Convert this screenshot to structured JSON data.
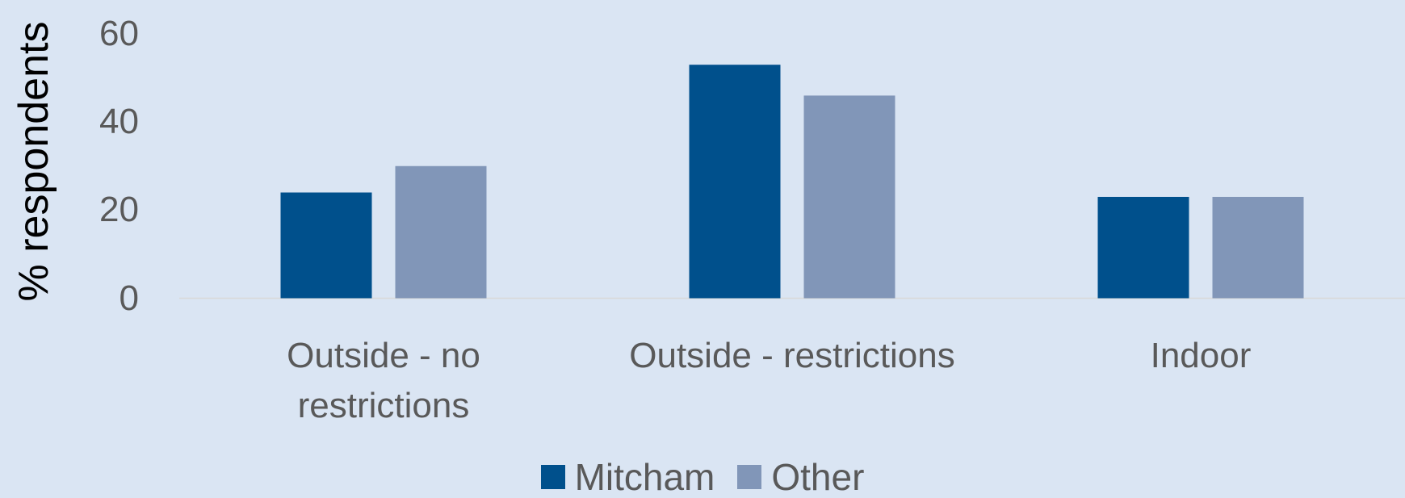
{
  "chart_data": {
    "type": "bar",
    "y_label": "% respondents",
    "categories": [
      "Outside - no restrictions",
      "Outside - restrictions",
      "Indoor"
    ],
    "series": [
      {
        "name": "Mitcham",
        "color": "#00508c",
        "values": [
          24,
          53,
          23
        ]
      },
      {
        "name": "Other",
        "color": "#8196b8",
        "values": [
          30,
          46,
          23
        ]
      }
    ],
    "ylim": [
      0,
      60
    ],
    "yticks": [
      0,
      20,
      40,
      60
    ],
    "grid": false,
    "legend": "bottom"
  }
}
